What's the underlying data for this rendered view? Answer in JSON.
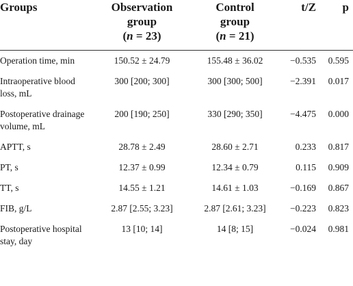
{
  "header": {
    "groups": "Groups",
    "observation": {
      "title": "Observation group",
      "open": "(",
      "symbol": "n",
      "rest": " = 23)"
    },
    "control": {
      "title": "Control group",
      "open": "(",
      "symbol": "n",
      "rest": " = 21)"
    },
    "stat": "t/Z",
    "p": "p"
  },
  "table": {
    "rows": [
      [
        "Operation time, min",
        "150.52 ± 24.79",
        "155.48 ± 36.02",
        "−0.535",
        "0.595"
      ],
      [
        "Intraoperative blood loss, mL",
        "300 [200; 300]",
        "300 [300; 500]",
        "−2.391",
        "0.017"
      ],
      [
        "Postoperative drainage volume, mL",
        "200 [190; 250]",
        "330 [290; 350]",
        "−4.475",
        "0.000"
      ],
      [
        "APTT, s",
        "28.78 ± 2.49",
        "28.60 ± 2.71",
        "0.233",
        "0.817"
      ],
      [
        "PT, s",
        "12.37 ± 0.99",
        "12.34 ± 0.79",
        "0.115",
        "0.909"
      ],
      [
        "TT, s",
        "14.55 ± 1.21",
        "14.61 ± 1.03",
        "−0.169",
        "0.867"
      ],
      [
        "FIB, g/L",
        "2.87 [2.55; 3.23]",
        "2.87 [2.61; 3.23]",
        "−0.223",
        "0.823"
      ],
      [
        "Postoperative hospital stay, day",
        "13 [10; 14]",
        "14 [8; 15]",
        "−0.024",
        "0.981"
      ]
    ]
  }
}
